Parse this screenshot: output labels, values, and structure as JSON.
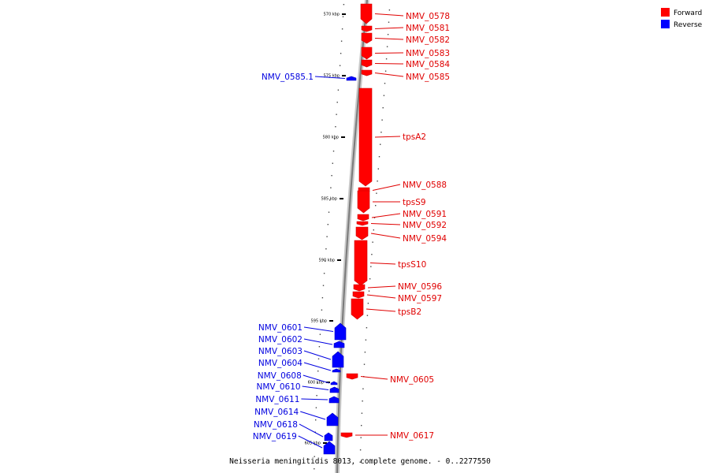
{
  "legend": [
    {
      "label": "Forward",
      "color": "#ff0000"
    },
    {
      "label": "Reverse",
      "color": "#0000ff"
    }
  ],
  "caption": "Neisseria meningitidis 8013, complete genome. - 0..2277550",
  "ticks": [
    "570 kbp",
    "575 kbp",
    "580 kbp",
    "585 kbp",
    "590 kbp",
    "595 kbp",
    "600 kbp",
    "605 kbp"
  ],
  "forward_genes": [
    "NMV_0578",
    "NMV_0581",
    "NMV_0582",
    "NMV_0583",
    "NMV_0584",
    "NMV_0585",
    "tpsA2",
    "NMV_0588",
    "tpsS9",
    "NMV_0591",
    "NMV_0592",
    "NMV_0594",
    "tpsS10",
    "NMV_0596",
    "NMV_0597",
    "tpsB2",
    "NMV_0605",
    "NMV_0617"
  ],
  "reverse_genes": [
    "NMV_0585.1",
    "NMV_0601",
    "NMV_0602",
    "NMV_0603",
    "NMV_0604",
    "NMV_0608",
    "NMV_0610",
    "NMV_0611",
    "NMV_0614",
    "NMV_0618",
    "NMV_0619"
  ]
}
